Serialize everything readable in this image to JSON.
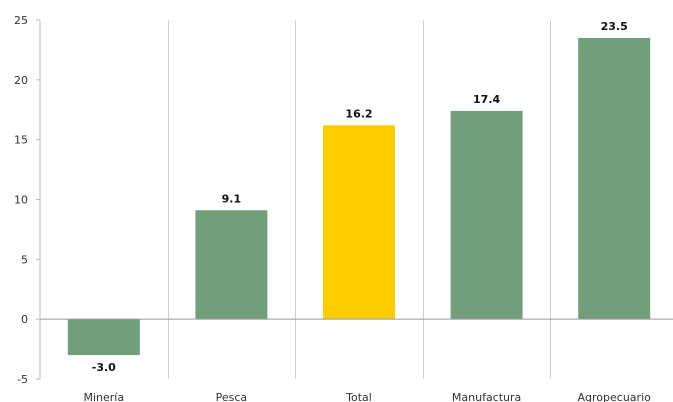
{
  "chart_data": {
    "type": "bar",
    "categories": [
      "Minería",
      "Pesca",
      "Total",
      "Manufactura",
      "Agropecuario"
    ],
    "values": [
      -3.0,
      9.1,
      16.2,
      17.4,
      23.5
    ],
    "value_labels": [
      "-3.0",
      "9.1",
      "16.2",
      "17.4",
      "23.5"
    ],
    "ylim": [
      -5,
      25
    ],
    "yticks": [
      "-5",
      "0",
      "5",
      "10",
      "15",
      "20",
      "25"
    ],
    "grid": "vertical separators between categories",
    "legend": "none",
    "colors": {
      "default": "#739e7c",
      "highlight": "#ffcc00",
      "highlight_category": "Total"
    }
  }
}
